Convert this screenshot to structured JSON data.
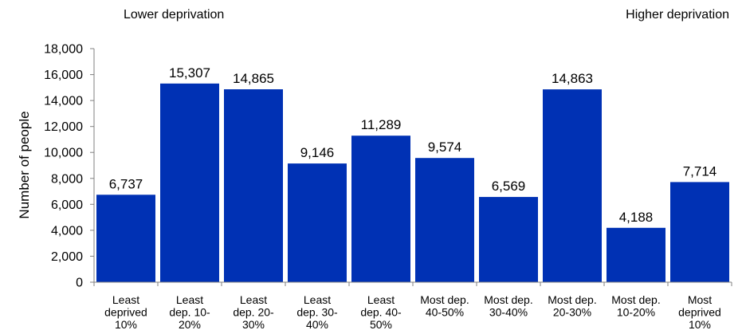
{
  "chart_data": {
    "type": "bar",
    "ylabel": "Number of people",
    "xlabel": "",
    "ylim": [
      0,
      18000
    ],
    "yticks": [
      0,
      2000,
      4000,
      6000,
      8000,
      10000,
      12000,
      14000,
      16000,
      18000
    ],
    "grid": false,
    "legend": "none",
    "categories": [
      [
        "Least",
        "deprived",
        "10%"
      ],
      [
        "Least",
        "dep. 10-",
        "20%"
      ],
      [
        "Least",
        "dep. 20-",
        "30%"
      ],
      [
        "Least",
        "dep. 30-",
        "40%"
      ],
      [
        "Least",
        "dep. 40-",
        "50%"
      ],
      [
        "Most dep.",
        "40-50%"
      ],
      [
        "Most dep.",
        "30-40%"
      ],
      [
        "Most dep.",
        "20-30%"
      ],
      [
        "Most dep.",
        "10-20%"
      ],
      [
        "Most",
        "deprived",
        "10%"
      ]
    ],
    "values": [
      6737,
      15307,
      14865,
      9146,
      11289,
      9574,
      6569,
      14863,
      4188,
      7714
    ],
    "annotations": {
      "left": "Lower deprivation",
      "right": "Higher deprivation"
    },
    "bar_color": "#0031B4"
  }
}
